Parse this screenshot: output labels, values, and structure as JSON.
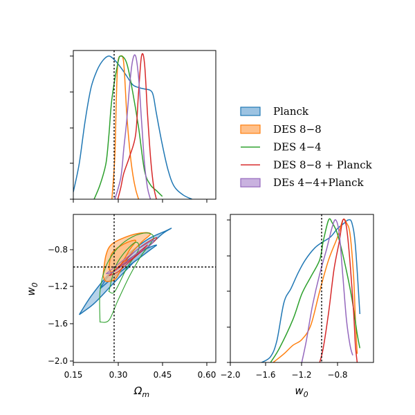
{
  "chart_data": {
    "type": "corner",
    "parameters": [
      {
        "symbol": "Ω",
        "sub": "m",
        "range": [
          0.15,
          0.63
        ],
        "ticks": [
          "0.15",
          "0.30",
          "0.45",
          "0.60"
        ],
        "truth": 0.286
      },
      {
        "symbol": "w",
        "sub": "0",
        "range": [
          -2.0,
          -0.55
        ],
        "ticks": [
          "−2.0",
          "−1.6",
          "−1.2",
          "−0.8"
        ],
        "truth": -1.0
      }
    ],
    "legend_location": "right-of-diagonal",
    "series": [
      {
        "name": "Planck",
        "color": "#1f77b4",
        "fill": "#9cc3e2",
        "style": "filled",
        "marginal_omega": [
          [
            0.15,
            0.05
          ],
          [
            0.17,
            0.25
          ],
          [
            0.19,
            0.55
          ],
          [
            0.21,
            0.78
          ],
          [
            0.23,
            0.9
          ],
          [
            0.25,
            0.97
          ],
          [
            0.27,
            1.0
          ],
          [
            0.29,
            0.97
          ],
          [
            0.31,
            0.92
          ],
          [
            0.33,
            0.86
          ],
          [
            0.35,
            0.8
          ],
          [
            0.37,
            0.78
          ],
          [
            0.39,
            0.77
          ],
          [
            0.41,
            0.76
          ],
          [
            0.42,
            0.72
          ],
          [
            0.43,
            0.6
          ],
          [
            0.45,
            0.38
          ],
          [
            0.47,
            0.2
          ],
          [
            0.49,
            0.09
          ],
          [
            0.52,
            0.03
          ],
          [
            0.55,
            0.0
          ]
        ],
        "marginal_w0": [
          [
            -1.65,
            0.0
          ],
          [
            -1.55,
            0.04
          ],
          [
            -1.48,
            0.15
          ],
          [
            -1.4,
            0.42
          ],
          [
            -1.32,
            0.52
          ],
          [
            -1.24,
            0.63
          ],
          [
            -1.16,
            0.72
          ],
          [
            -1.06,
            0.8
          ],
          [
            -0.98,
            0.84
          ],
          [
            -0.88,
            0.88
          ],
          [
            -0.8,
            0.94
          ],
          [
            -0.72,
            0.98
          ],
          [
            -0.68,
            1.0
          ],
          [
            -0.64,
            0.98
          ],
          [
            -0.6,
            0.82
          ],
          [
            -0.55,
            0.34
          ]
        ],
        "contours": [
          [
            [
              0.17,
              -1.5
            ],
            [
              0.22,
              -1.38
            ],
            [
              0.28,
              -1.18
            ],
            [
              0.34,
              -0.98
            ],
            [
              0.4,
              -0.78
            ],
            [
              0.45,
              -0.63
            ],
            [
              0.48,
              -0.57
            ],
            [
              0.46,
              -0.6
            ],
            [
              0.4,
              -0.69
            ],
            [
              0.33,
              -0.86
            ],
            [
              0.27,
              -1.06
            ],
            [
              0.21,
              -1.3
            ],
            [
              0.17,
              -1.5
            ]
          ],
          [
            [
              0.24,
              -1.22
            ],
            [
              0.3,
              -1.06
            ],
            [
              0.36,
              -0.92
            ],
            [
              0.41,
              -0.8
            ],
            [
              0.43,
              -0.75
            ],
            [
              0.39,
              -0.8
            ],
            [
              0.33,
              -0.92
            ],
            [
              0.27,
              -1.08
            ],
            [
              0.24,
              -1.22
            ]
          ]
        ]
      },
      {
        "name": "DES 8−8",
        "color": "#ff7f0e",
        "fill": "#ffc08a",
        "style": "filled",
        "marginal_omega": [
          [
            0.28,
            0.0
          ],
          [
            0.29,
            0.3
          ],
          [
            0.295,
            0.7
          ],
          [
            0.3,
            0.95
          ],
          [
            0.31,
            1.0
          ],
          [
            0.32,
            0.95
          ],
          [
            0.33,
            0.6
          ],
          [
            0.34,
            0.35
          ],
          [
            0.35,
            0.18
          ],
          [
            0.36,
            0.07
          ],
          [
            0.37,
            0.0
          ]
        ],
        "marginal_w0": [
          [
            -1.52,
            0.0
          ],
          [
            -1.4,
            0.06
          ],
          [
            -1.3,
            0.12
          ],
          [
            -1.2,
            0.16
          ],
          [
            -1.1,
            0.26
          ],
          [
            -1.0,
            0.5
          ],
          [
            -0.9,
            0.72
          ],
          [
            -0.8,
            0.88
          ],
          [
            -0.74,
            1.0
          ],
          [
            -0.7,
            0.98
          ],
          [
            -0.66,
            0.9
          ],
          [
            -0.62,
            0.6
          ],
          [
            -0.6,
            0.3
          ],
          [
            -0.58,
            0.06
          ]
        ],
        "contours": [
          [
            [
              0.25,
              -1.08
            ],
            [
              0.26,
              -0.86
            ],
            [
              0.28,
              -0.74
            ],
            [
              0.33,
              -0.66
            ],
            [
              0.38,
              -0.62
            ],
            [
              0.41,
              -0.63
            ],
            [
              0.38,
              -0.72
            ],
            [
              0.34,
              -0.86
            ],
            [
              0.31,
              -1.02
            ],
            [
              0.29,
              -1.12
            ],
            [
              0.26,
              -1.14
            ],
            [
              0.25,
              -1.08
            ]
          ],
          [
            [
              0.27,
              -1.0
            ],
            [
              0.28,
              -0.84
            ],
            [
              0.32,
              -0.74
            ],
            [
              0.36,
              -0.7
            ],
            [
              0.34,
              -0.8
            ],
            [
              0.31,
              -0.96
            ],
            [
              0.28,
              -1.04
            ],
            [
              0.27,
              -1.0
            ]
          ]
        ]
      },
      {
        "name": "DES 4−4",
        "color": "#2ca02c",
        "style": "line",
        "marginal_omega": [
          [
            0.22,
            0.0
          ],
          [
            0.24,
            0.1
          ],
          [
            0.26,
            0.25
          ],
          [
            0.27,
            0.45
          ],
          [
            0.28,
            0.7
          ],
          [
            0.3,
            0.95
          ],
          [
            0.31,
            1.0
          ],
          [
            0.33,
            0.95
          ],
          [
            0.35,
            0.75
          ],
          [
            0.37,
            0.5
          ],
          [
            0.39,
            0.2
          ],
          [
            0.41,
            0.1
          ],
          [
            0.43,
            0.06
          ],
          [
            0.45,
            0.02
          ]
        ],
        "marginal_w0": [
          [
            -1.55,
            0.0
          ],
          [
            -1.45,
            0.1
          ],
          [
            -1.3,
            0.3
          ],
          [
            -1.2,
            0.48
          ],
          [
            -1.1,
            0.6
          ],
          [
            -1.0,
            0.72
          ],
          [
            -0.96,
            0.85
          ],
          [
            -0.9,
            1.0
          ],
          [
            -0.86,
            0.98
          ],
          [
            -0.8,
            0.9
          ],
          [
            -0.72,
            0.7
          ],
          [
            -0.64,
            0.45
          ],
          [
            -0.58,
            0.2
          ],
          [
            -0.55,
            0.1
          ]
        ],
        "contours": [
          [
            [
              0.24,
              -1.58
            ],
            [
              0.24,
              -1.25
            ],
            [
              0.26,
              -0.98
            ],
            [
              0.3,
              -0.78
            ],
            [
              0.35,
              -0.66
            ],
            [
              0.4,
              -0.62
            ],
            [
              0.42,
              -0.68
            ],
            [
              0.38,
              -0.86
            ],
            [
              0.34,
              -1.08
            ],
            [
              0.3,
              -1.35
            ],
            [
              0.27,
              -1.56
            ],
            [
              0.24,
              -1.58
            ]
          ],
          [
            [
              0.27,
              -1.25
            ],
            [
              0.29,
              -1.0
            ],
            [
              0.32,
              -0.84
            ],
            [
              0.36,
              -0.72
            ],
            [
              0.37,
              -0.8
            ],
            [
              0.33,
              -1.0
            ],
            [
              0.29,
              -1.25
            ],
            [
              0.27,
              -1.25
            ]
          ]
        ]
      },
      {
        "name": "DES 8−8 + Planck",
        "color": "#d62728",
        "style": "line",
        "marginal_omega": [
          [
            0.3,
            0.0
          ],
          [
            0.31,
            0.08
          ],
          [
            0.32,
            0.18
          ],
          [
            0.34,
            0.3
          ],
          [
            0.36,
            0.45
          ],
          [
            0.37,
            0.75
          ],
          [
            0.38,
            1.0
          ],
          [
            0.39,
            0.95
          ],
          [
            0.4,
            0.6
          ],
          [
            0.41,
            0.3
          ],
          [
            0.42,
            0.1
          ],
          [
            0.43,
            0.0
          ]
        ],
        "marginal_w0": [
          [
            -1.0,
            0.0
          ],
          [
            -0.96,
            0.1
          ],
          [
            -0.9,
            0.35
          ],
          [
            -0.84,
            0.65
          ],
          [
            -0.78,
            0.85
          ],
          [
            -0.74,
            1.0
          ],
          [
            -0.7,
            0.95
          ],
          [
            -0.66,
            0.7
          ],
          [
            -0.62,
            0.35
          ],
          [
            -0.6,
            0.12
          ],
          [
            -0.58,
            0.0
          ]
        ],
        "contours": [
          [
            [
              0.27,
              -1.08
            ],
            [
              0.31,
              -0.96
            ],
            [
              0.35,
              -0.84
            ],
            [
              0.39,
              -0.74
            ],
            [
              0.43,
              -0.67
            ],
            [
              0.42,
              -0.72
            ],
            [
              0.38,
              -0.82
            ],
            [
              0.34,
              -0.93
            ],
            [
              0.3,
              -1.04
            ],
            [
              0.27,
              -1.08
            ]
          ],
          [
            [
              0.3,
              -1.0
            ],
            [
              0.34,
              -0.9
            ],
            [
              0.38,
              -0.8
            ],
            [
              0.4,
              -0.75
            ],
            [
              0.37,
              -0.84
            ],
            [
              0.33,
              -0.94
            ],
            [
              0.3,
              -1.0
            ]
          ]
        ]
      },
      {
        "name": "DEs 4−4+Planck",
        "color": "#9467bd",
        "fill": "#c9b2df",
        "style": "line",
        "marginal_omega": [
          [
            0.29,
            0.0
          ],
          [
            0.31,
            0.15
          ],
          [
            0.32,
            0.35
          ],
          [
            0.33,
            0.55
          ],
          [
            0.34,
            0.8
          ],
          [
            0.35,
            0.97
          ],
          [
            0.36,
            1.0
          ],
          [
            0.37,
            0.85
          ],
          [
            0.38,
            0.55
          ],
          [
            0.39,
            0.25
          ],
          [
            0.4,
            0.08
          ],
          [
            0.41,
            0.0
          ]
        ],
        "marginal_w0": [
          [
            -1.2,
            0.0
          ],
          [
            -1.15,
            0.15
          ],
          [
            -1.08,
            0.4
          ],
          [
            -1.0,
            0.62
          ],
          [
            -0.92,
            0.8
          ],
          [
            -0.86,
            0.95
          ],
          [
            -0.82,
            1.0
          ],
          [
            -0.78,
            0.9
          ],
          [
            -0.74,
            0.6
          ],
          [
            -0.7,
            0.3
          ],
          [
            -0.66,
            0.12
          ],
          [
            -0.63,
            0.05
          ]
        ],
        "contours": [
          [
            [
              0.26,
              -1.06
            ],
            [
              0.3,
              -0.96
            ],
            [
              0.34,
              -0.86
            ],
            [
              0.38,
              -0.77
            ],
            [
              0.42,
              -0.7
            ],
            [
              0.41,
              -0.75
            ],
            [
              0.37,
              -0.83
            ],
            [
              0.33,
              -0.93
            ],
            [
              0.29,
              -1.03
            ],
            [
              0.26,
              -1.06
            ]
          ]
        ]
      }
    ]
  }
}
